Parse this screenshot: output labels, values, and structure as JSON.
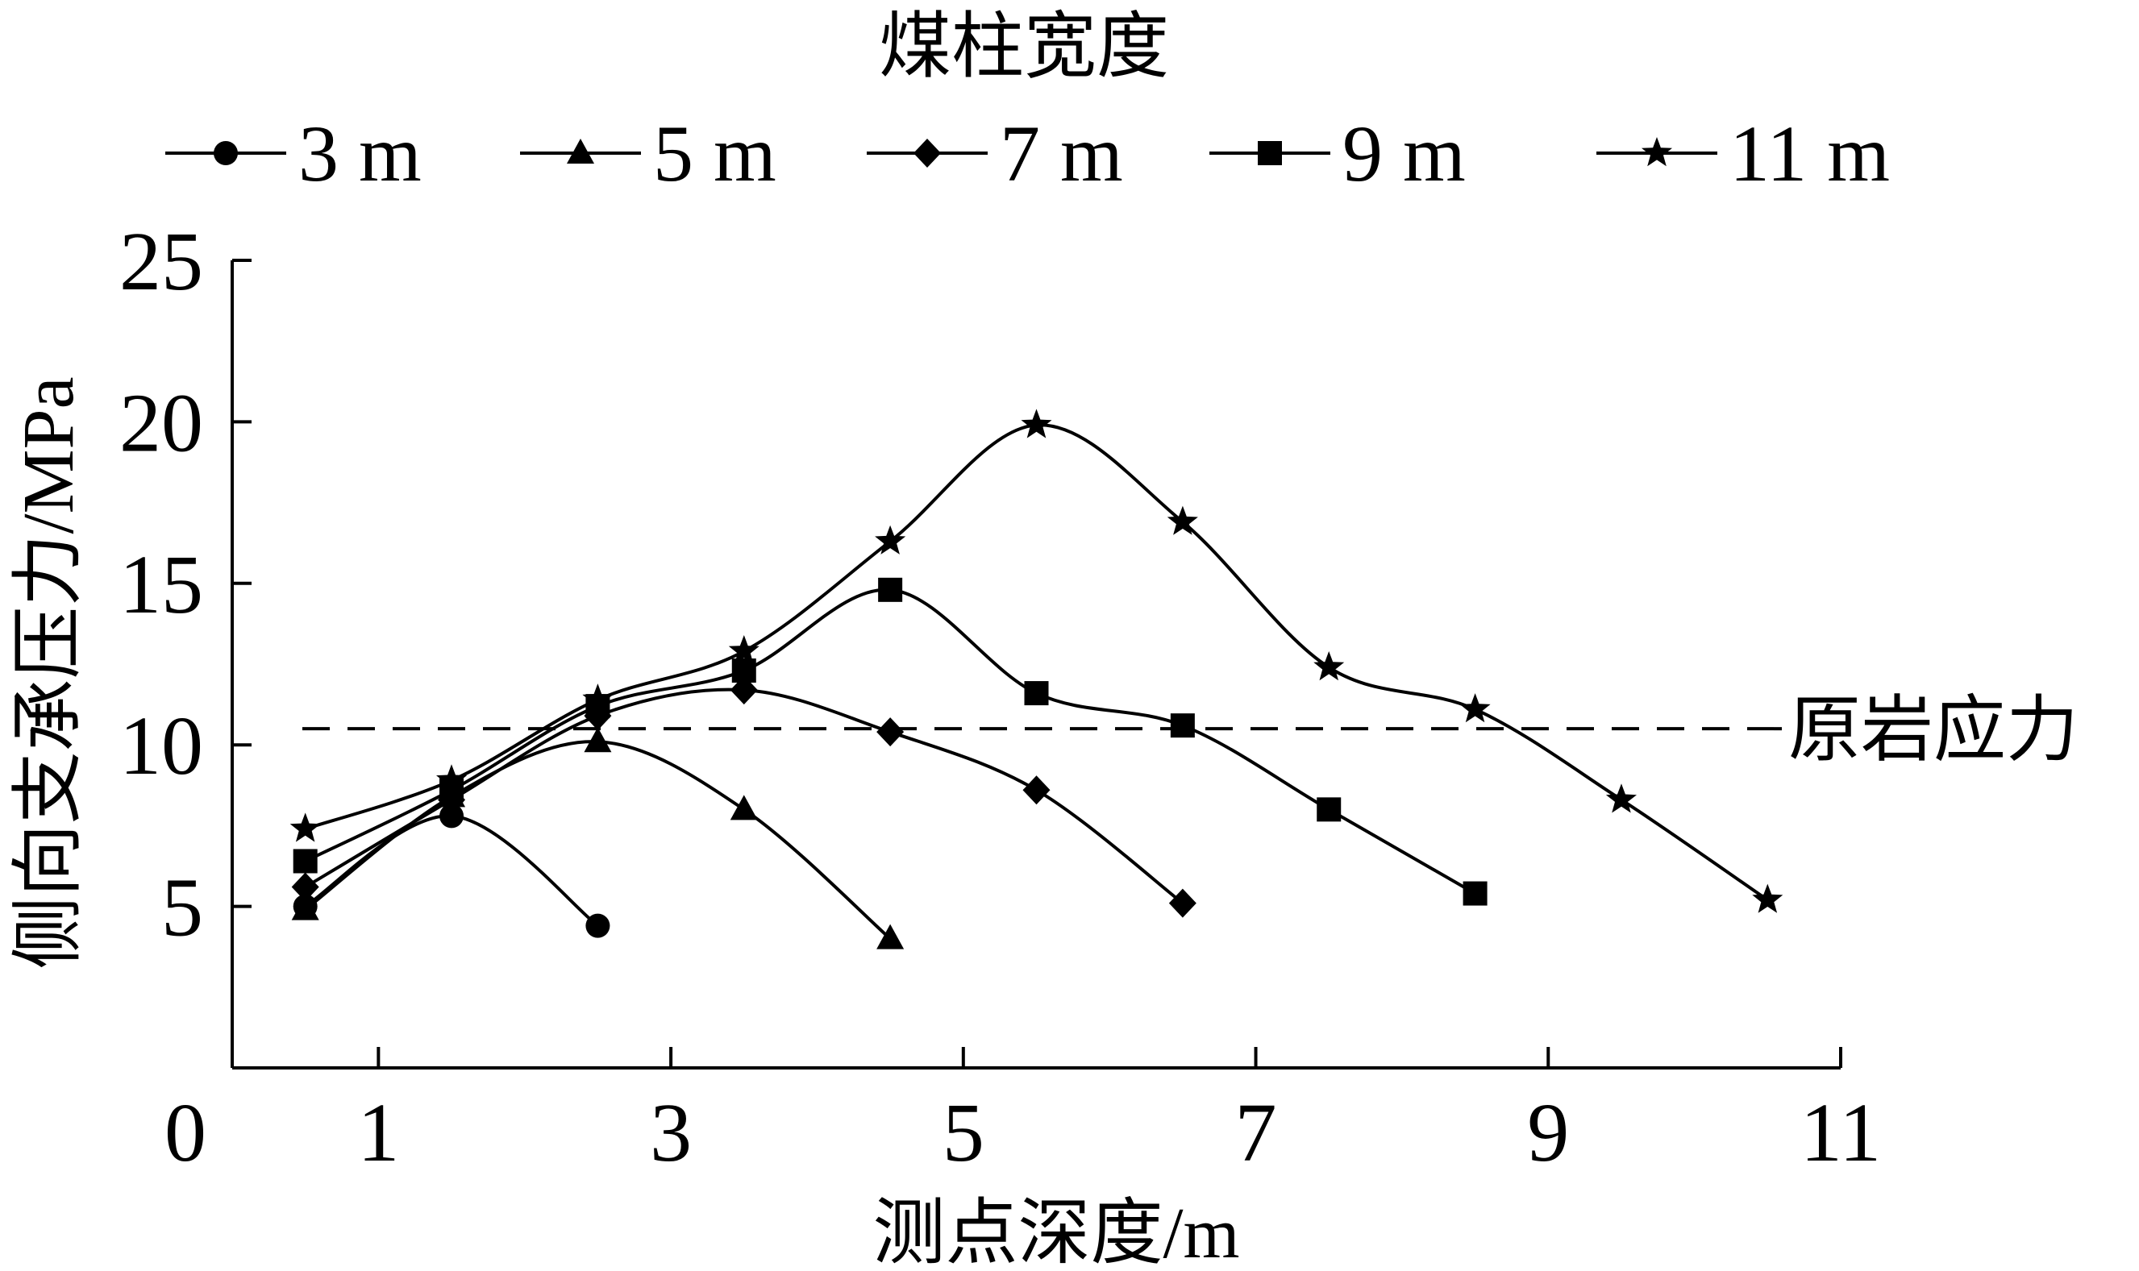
{
  "chart_data": {
    "type": "line",
    "title": "",
    "legend_title": "煤柱宽度",
    "legend_position": "top",
    "xlabel": "测点深度/m",
    "ylabel": "侧向支承压力/MPa",
    "xlim": [
      0,
      11
    ],
    "ylim": [
      0,
      25
    ],
    "x_ticks": [
      "0",
      "1",
      "3",
      "5",
      "7",
      "9",
      "11"
    ],
    "x_tick_values": [
      0,
      1,
      3,
      5,
      7,
      9,
      11
    ],
    "y_ticks": [
      "5",
      "10",
      "15",
      "20",
      "25"
    ],
    "y_tick_values": [
      5,
      10,
      15,
      20,
      25
    ],
    "grid": false,
    "line_color": "#000000",
    "reference_line": {
      "y": 10.5,
      "label": "原岩应力",
      "style": "dashed"
    },
    "series": [
      {
        "name": "3 m",
        "marker": "circle",
        "x": [
          0.5,
          1.5,
          2.5
        ],
        "values": [
          5.0,
          7.8,
          4.4
        ]
      },
      {
        "name": "5 m",
        "marker": "triangle",
        "x": [
          0.5,
          1.5,
          2.5,
          3.5,
          4.5
        ],
        "values": [
          4.9,
          8.4,
          10.1,
          8.0,
          4.0
        ]
      },
      {
        "name": "7 m",
        "marker": "diamond",
        "x": [
          0.5,
          1.5,
          2.5,
          3.5,
          4.5,
          5.5,
          6.5
        ],
        "values": [
          5.6,
          8.3,
          10.9,
          11.7,
          10.4,
          8.6,
          5.1
        ]
      },
      {
        "name": "9 m",
        "marker": "square",
        "x": [
          0.5,
          1.5,
          2.5,
          3.5,
          4.5,
          5.5,
          6.5,
          7.5,
          8.5
        ],
        "values": [
          6.4,
          8.6,
          11.2,
          12.3,
          14.8,
          11.6,
          10.6,
          8.0,
          5.4
        ]
      },
      {
        "name": "11  m",
        "marker": "star",
        "x": [
          0.5,
          1.5,
          2.5,
          3.5,
          4.5,
          5.5,
          6.5,
          7.5,
          8.5,
          9.5,
          10.5
        ],
        "values": [
          7.4,
          8.9,
          11.4,
          12.9,
          16.3,
          19.9,
          16.9,
          12.4,
          11.1,
          8.3,
          5.2
        ]
      }
    ]
  }
}
